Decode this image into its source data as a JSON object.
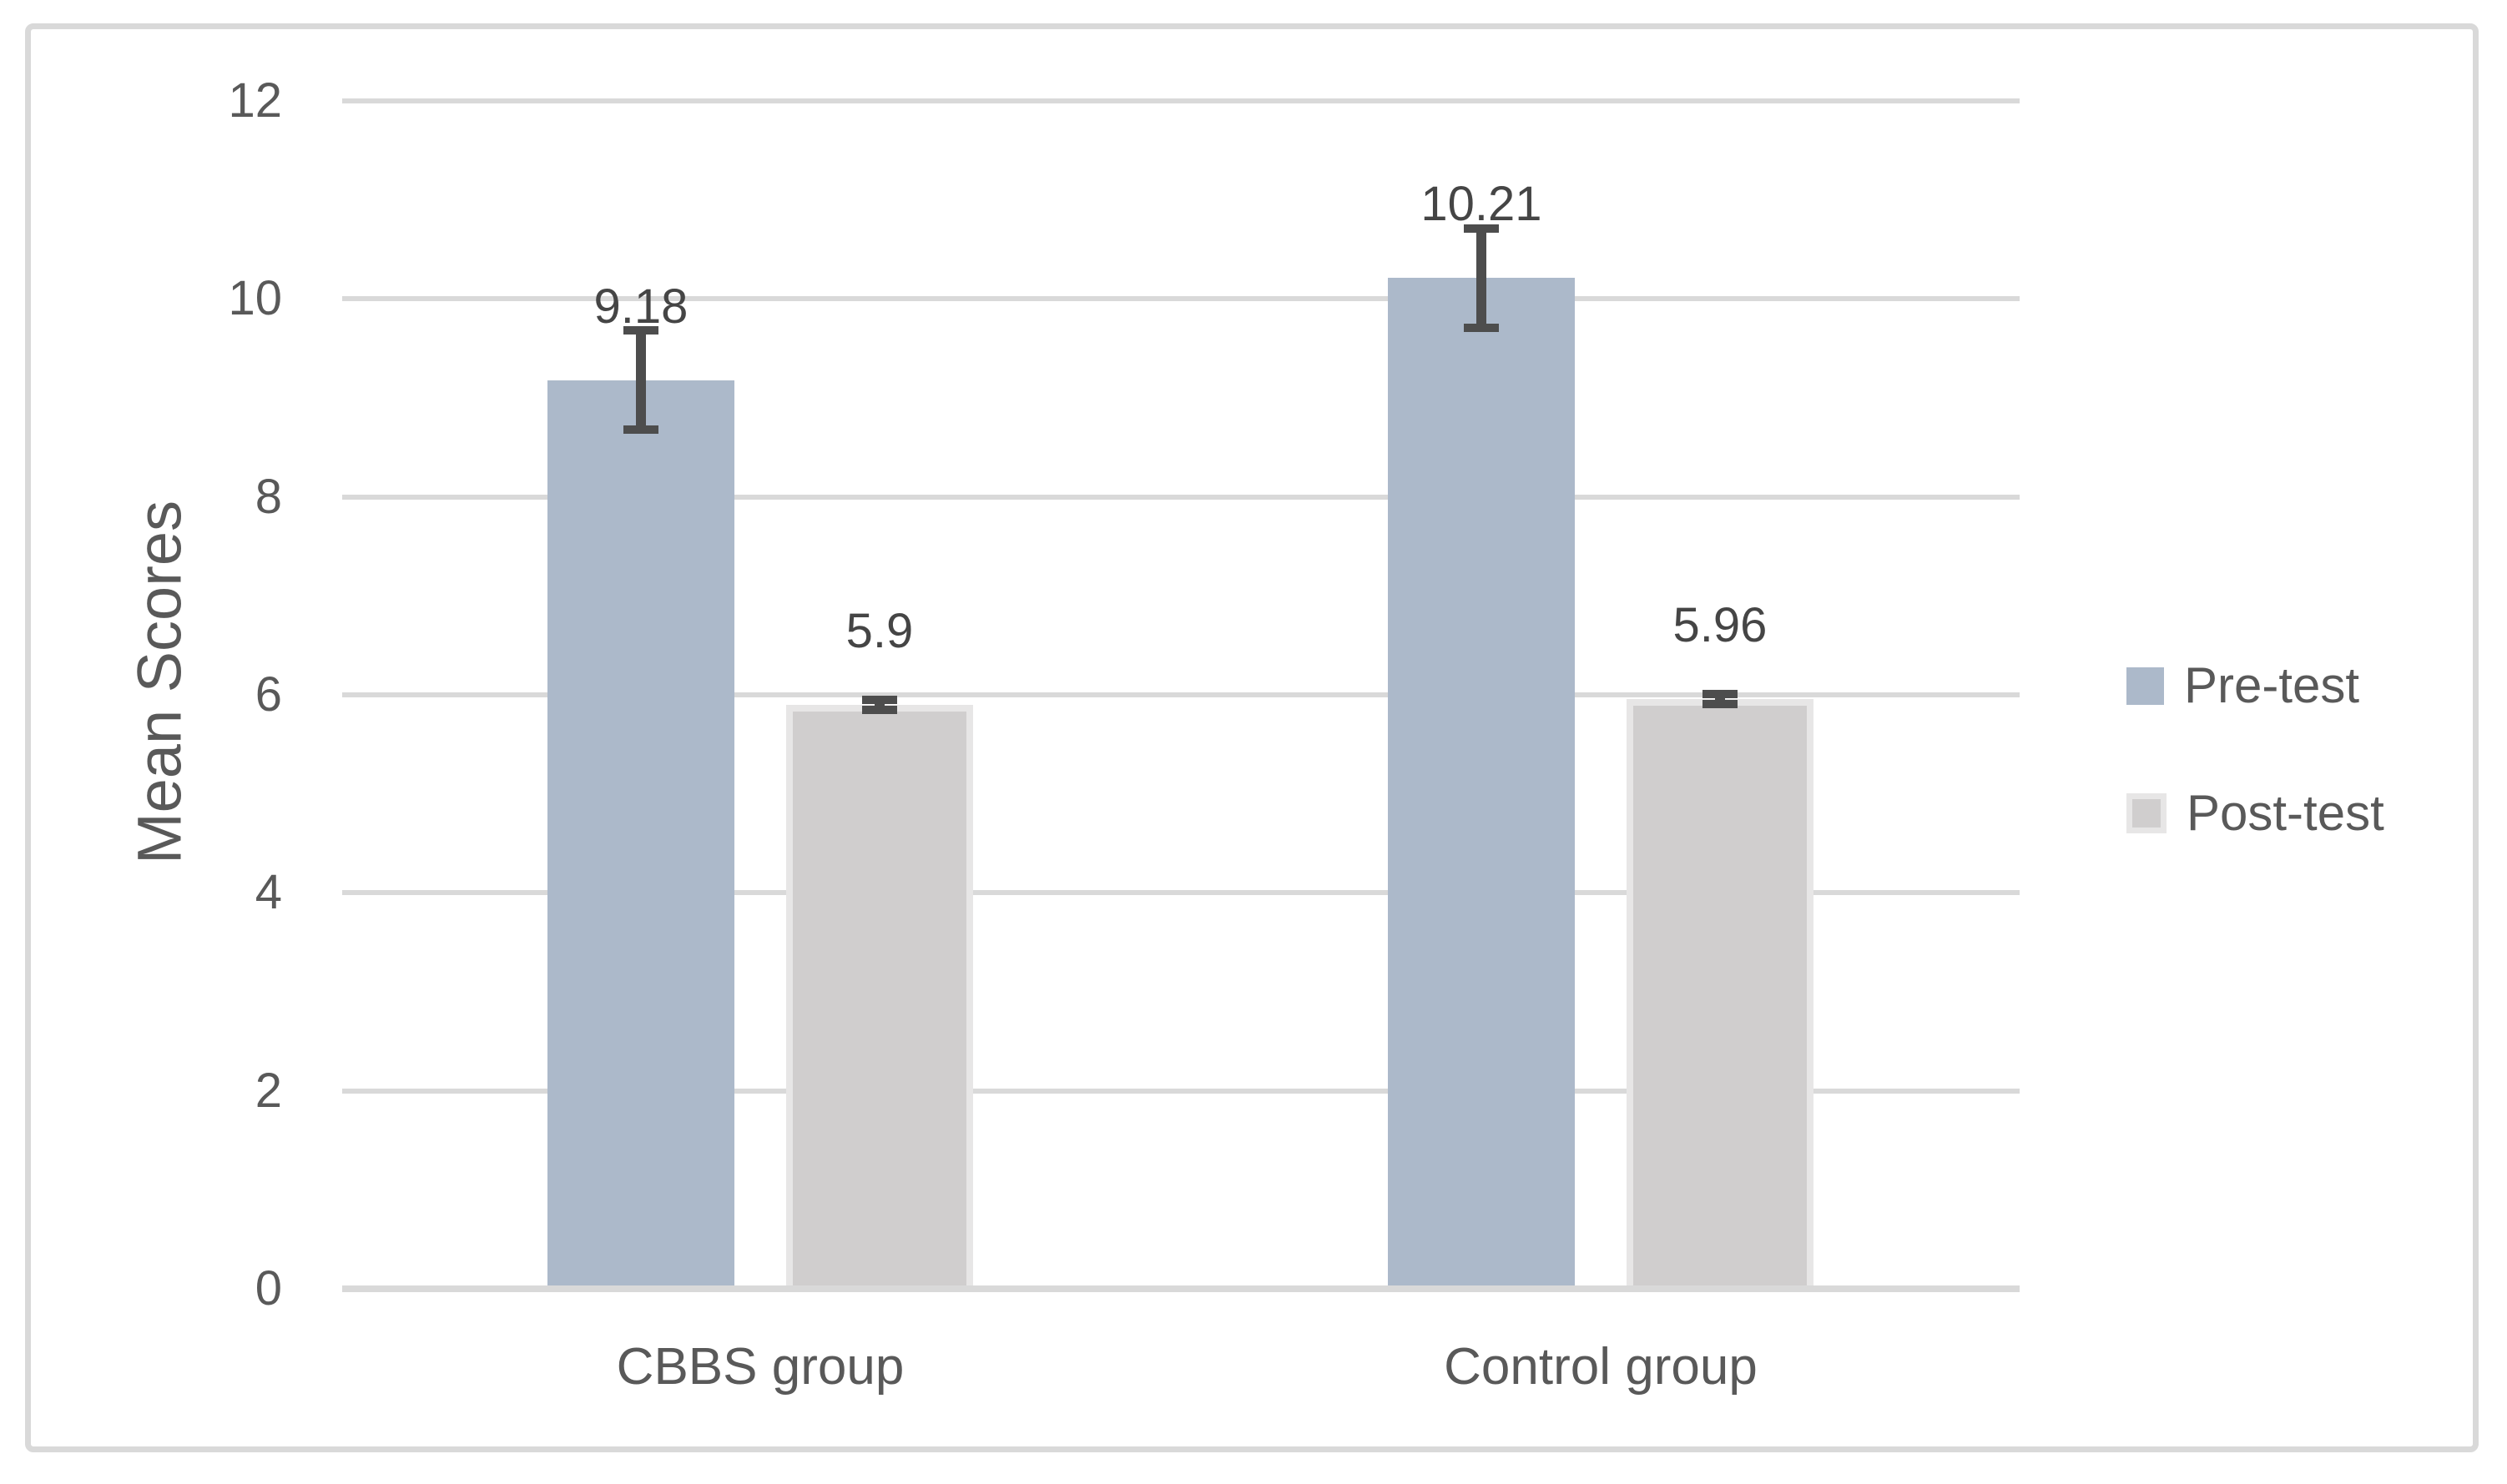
{
  "chart_data": {
    "type": "bar",
    "title": "",
    "ylabel": "Mean Scores",
    "xlabel": "",
    "categories": [
      "CBBS group",
      "Control group"
    ],
    "series": [
      {
        "name": "Pre-test",
        "color": "#acb9ca",
        "values": [
          9.18,
          10.21
        ],
        "labels": [
          "9.18",
          "10.21"
        ],
        "errors": [
          0.5,
          0.5
        ]
      },
      {
        "name": "Post-test",
        "color": "#d0cece",
        "border_color": "#e7e6e6",
        "values": [
          5.9,
          5.96
        ],
        "labels": [
          "5.9",
          "5.96"
        ],
        "errors": [
          0.05,
          0.05
        ]
      }
    ],
    "ylim": [
      0,
      12
    ],
    "yticks": [
      0,
      2,
      4,
      6,
      8,
      10,
      12
    ],
    "grid": true,
    "legend_position": "right",
    "gridline_color": "#d9d9d9",
    "text_color": "#595959",
    "error_bar_color": "#4d4d4d"
  }
}
